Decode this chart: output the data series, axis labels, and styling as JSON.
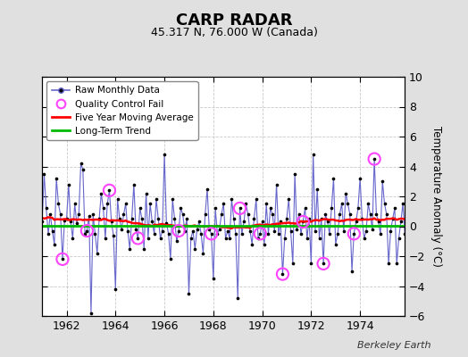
{
  "title": "CARP RADAR",
  "subtitle": "45.317 N, 76.000 W (Canada)",
  "ylabel": "Temperature Anomaly (°C)",
  "credit": "Berkeley Earth",
  "ylim": [
    -6,
    10
  ],
  "yticks": [
    -6,
    -4,
    -2,
    0,
    2,
    4,
    6,
    8,
    10
  ],
  "xlim": [
    1961.0,
    1975.83
  ],
  "xticks": [
    1962,
    1964,
    1966,
    1968,
    1970,
    1972,
    1974
  ],
  "bg_color": "#e0e0e0",
  "plot_bg_color": "#ffffff",
  "raw_line_color": "#6666cc",
  "raw_marker_color": "#000000",
  "qc_fail_color": "#ff44ff",
  "moving_avg_color": "#ff0000",
  "trend_color": "#00bb00",
  "raw_data": [
    0.3,
    3.5,
    1.2,
    -0.5,
    0.8,
    -0.3,
    -1.2,
    3.2,
    1.5,
    0.8,
    -2.2,
    0.4,
    0.5,
    2.8,
    0.3,
    -0.8,
    1.5,
    0.2,
    0.8,
    4.2,
    3.8,
    -0.5,
    -0.3,
    0.7,
    2.1,
    0.8,
    -0.5,
    -1.8,
    0.5,
    2.2,
    1.2,
    -0.8,
    1.5,
    2.4,
    0.3,
    -0.6,
    -0.3,
    1.8,
    0.5,
    -0.2,
    0.8,
    1.5,
    -0.3,
    -1.5,
    0.5,
    2.8,
    -0.2,
    -0.8,
    1.2,
    0.5,
    -1.5,
    2.2,
    -0.8,
    1.5,
    0.3,
    -0.5,
    1.8,
    0.5,
    -0.8,
    -0.3,
    4.5,
    0.2,
    -0.5,
    -2.2,
    1.8,
    0.5,
    -1.0,
    -0.3,
    1.2,
    0.8,
    -0.3,
    0.5,
    2.5,
    -0.8,
    -0.3,
    -1.5,
    -0.2,
    0.3,
    -0.5,
    -1.8,
    0.8,
    2.5,
    -0.2,
    -0.5,
    0.3,
    1.2,
    -0.5,
    -0.2,
    0.8,
    1.5,
    -0.8,
    -0.3,
    -0.8,
    1.8,
    0.5,
    -0.5,
    0.8,
    1.2,
    -0.5,
    0.3,
    1.5,
    0.8,
    -0.3,
    -1.2,
    0.5,
    1.8,
    -0.8,
    -0.5,
    0.3,
    -1.2,
    1.5,
    -0.5,
    1.2,
    0.8,
    -0.3,
    2.8,
    -0.5,
    0.3,
    -3.2,
    -0.8,
    0.5,
    1.8,
    -0.3,
    -2.5,
    3.5,
    -0.2,
    0.8,
    -0.5,
    0.3,
    1.2,
    -0.8,
    0.5,
    -2.5,
    4.8,
    -0.3,
    2.5,
    -0.8,
    0.5,
    -2.5,
    0.8,
    0.3,
    -0.5,
    1.2,
    3.2,
    -1.2,
    -0.5,
    0.8,
    1.5,
    -0.3,
    2.2,
    1.5,
    0.8,
    -3.0,
    -0.5,
    0.3,
    1.2,
    3.2,
    0.5,
    -0.8,
    -0.3,
    1.5,
    0.8,
    -0.2,
    4.5,
    0.8,
    0.3,
    -0.5,
    3.0,
    1.5,
    0.8,
    -2.5,
    -0.3,
    0.5,
    1.2,
    -2.5,
    -0.8,
    0.3,
    1.5,
    -0.5,
    0.8
  ],
  "spike_overrides": {
    "24": -5.8,
    "36": -4.2,
    "60": 4.8,
    "72": -4.5,
    "84": -3.5,
    "96": -4.8
  },
  "qc_fail_indices": [
    10,
    22,
    33,
    47,
    67,
    83,
    97,
    107,
    118,
    128,
    138,
    153,
    163
  ],
  "trend_value": 0.05,
  "moving_avg_window": 60
}
